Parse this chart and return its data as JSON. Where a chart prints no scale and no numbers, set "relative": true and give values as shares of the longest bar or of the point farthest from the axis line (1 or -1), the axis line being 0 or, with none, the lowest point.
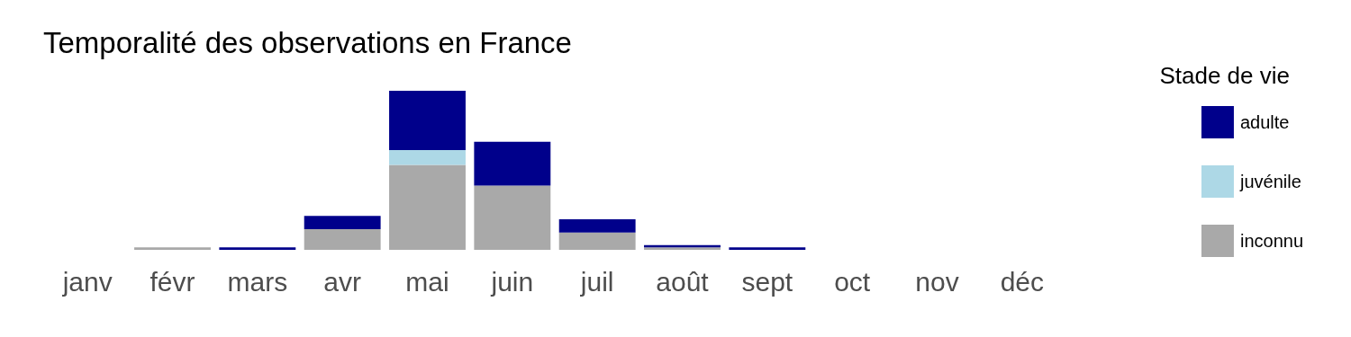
{
  "chart_data": {
    "type": "bar",
    "title": "Temporalité des observations en France",
    "legend_title": "Stade de vie",
    "stacked": true,
    "relative": true,
    "legend": "right",
    "grid": false,
    "categories": [
      "janv",
      "févr",
      "mars",
      "avr",
      "mai",
      "juin",
      "juil",
      "août",
      "sept",
      "oct",
      "nov",
      "déc"
    ],
    "series": [
      {
        "name": "inconnu",
        "color": "#a9a9a9",
        "values": [
          0,
          0.015,
          0,
          0.13,
          0.534,
          0.404,
          0.109,
          0.015,
          0,
          0,
          0,
          0
        ]
      },
      {
        "name": "juvénile",
        "color": "#add8e6",
        "values": [
          0,
          0,
          0,
          0,
          0.093,
          0,
          0,
          0,
          0,
          0,
          0,
          0
        ]
      },
      {
        "name": "adulte",
        "color": "#00008b",
        "values": [
          0,
          0,
          0.015,
          0.083,
          0.373,
          0.275,
          0.083,
          0.015,
          0.015,
          0,
          0,
          0
        ]
      }
    ]
  }
}
